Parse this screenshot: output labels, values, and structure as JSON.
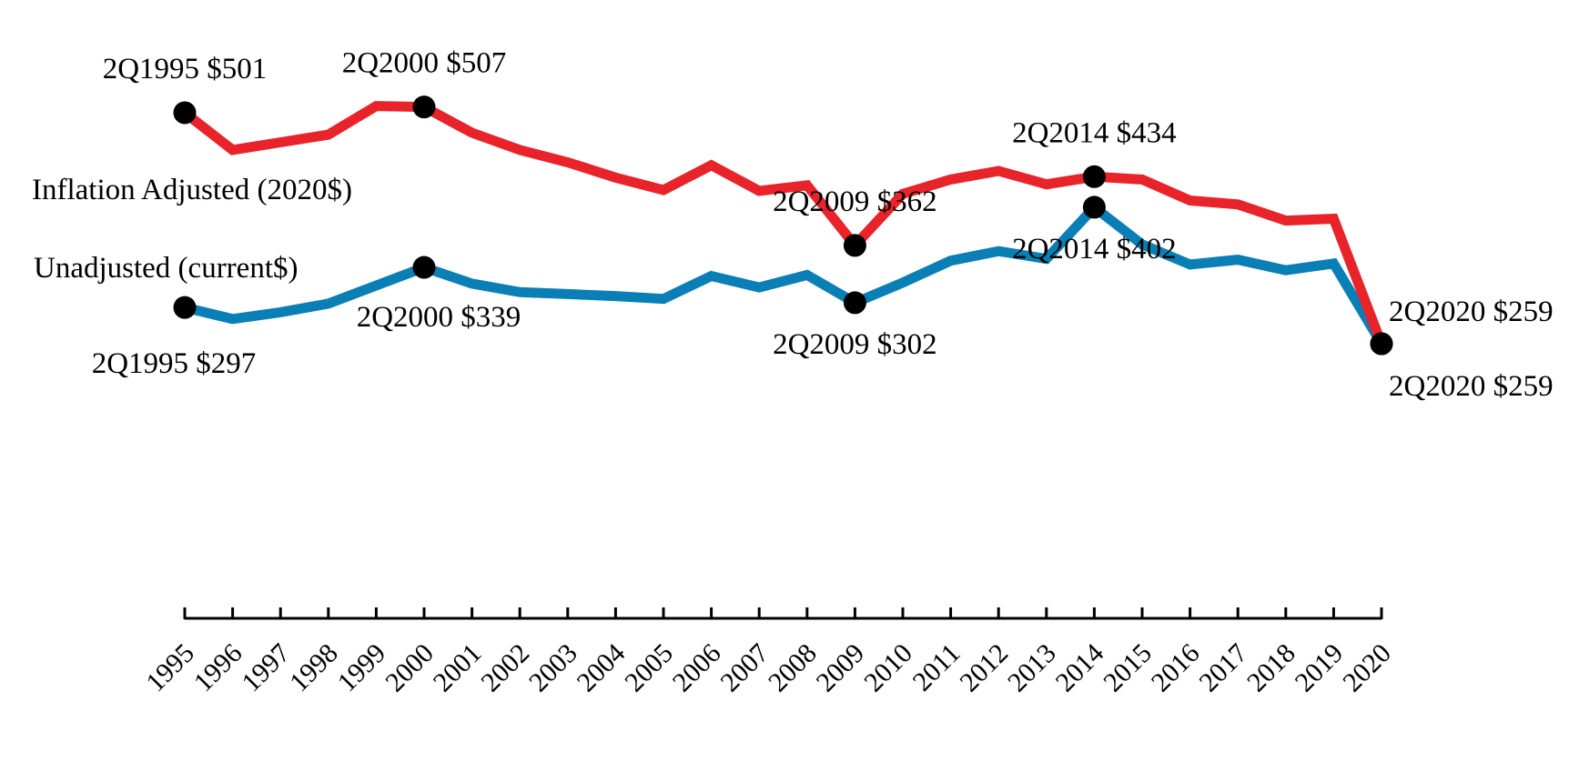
{
  "chart_data": {
    "type": "line",
    "title": "",
    "xlabel": "",
    "ylabel": "",
    "x": [
      1995,
      1996,
      1997,
      1998,
      1999,
      2000,
      2001,
      2002,
      2003,
      2004,
      2005,
      2006,
      2007,
      2008,
      2009,
      2010,
      2011,
      2012,
      2013,
      2014,
      2015,
      2016,
      2017,
      2018,
      2019,
      2020
    ],
    "ylim": [
      0,
      560
    ],
    "grid": false,
    "series": [
      {
        "name": "Inflation Adjusted (2020$)",
        "color": "#e8232a",
        "values": [
          501,
          462,
          470,
          478,
          508,
          507,
          480,
          462,
          449,
          433,
          420,
          446,
          419,
          425,
          362,
          416,
          431,
          440,
          426,
          434,
          431,
          409,
          405,
          388,
          390,
          259
        ]
      },
      {
        "name": "Unadjusted (current$)",
        "color": "#0a7fb5",
        "values": [
          297,
          285,
          292,
          301,
          320,
          339,
          322,
          313,
          311,
          309,
          306,
          330,
          318,
          331,
          302,
          323,
          346,
          356,
          348,
          402,
          363,
          342,
          347,
          336,
          343,
          259
        ]
      }
    ],
    "point_labels": [
      {
        "series": 0,
        "x": 1995,
        "text": "2Q1995 $501",
        "pos": "above"
      },
      {
        "series": 0,
        "x": 2000,
        "text": "2Q2000 $507",
        "pos": "above"
      },
      {
        "series": 0,
        "x": 2009,
        "text": "2Q2009 $362",
        "pos": "above"
      },
      {
        "series": 0,
        "x": 2014,
        "text": "2Q2014 $434",
        "pos": "above"
      },
      {
        "series": 0,
        "x": 2020,
        "text": "2Q2020 $259",
        "pos": "above-right"
      },
      {
        "series": 1,
        "x": 1995,
        "text": "2Q1995 $297",
        "pos": "below"
      },
      {
        "series": 1,
        "x": 2000,
        "text": "2Q2000 $339",
        "pos": "below"
      },
      {
        "series": 1,
        "x": 2009,
        "text": "2Q2009 $302",
        "pos": "below"
      },
      {
        "series": 1,
        "x": 2014,
        "text": "2Q2014 $402",
        "pos": "below"
      },
      {
        "series": 1,
        "x": 2020,
        "text": "2Q2020 $259",
        "pos": "below-right"
      }
    ],
    "series_labels": [
      {
        "series": 0,
        "text": "Inflation Adjusted (2020$)"
      },
      {
        "series": 1,
        "text": "Unadjusted (current$)"
      }
    ]
  }
}
